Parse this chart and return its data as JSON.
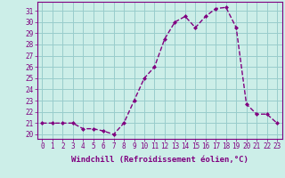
{
  "x": [
    0,
    1,
    2,
    3,
    4,
    5,
    6,
    7,
    8,
    9,
    10,
    11,
    12,
    13,
    14,
    15,
    16,
    17,
    18,
    19,
    20,
    21,
    22,
    23
  ],
  "y": [
    21.0,
    21.0,
    21.0,
    21.0,
    20.5,
    20.5,
    20.3,
    20.0,
    21.0,
    23.0,
    25.0,
    26.0,
    28.5,
    30.0,
    30.5,
    29.5,
    30.5,
    31.2,
    31.3,
    29.5,
    22.7,
    21.8,
    21.8,
    21.0
  ],
  "line_color": "#800080",
  "marker": "D",
  "marker_size": 2.0,
  "bg_color": "#cceee8",
  "grid_color": "#99cccc",
  "xlabel": "Windchill (Refroidissement éolien,°C)",
  "ylabel_ticks": [
    20,
    21,
    22,
    23,
    24,
    25,
    26,
    27,
    28,
    29,
    30,
    31
  ],
  "xlim": [
    -0.5,
    23.5
  ],
  "ylim": [
    19.6,
    31.8
  ],
  "xtick_labels": [
    "0",
    "1",
    "2",
    "3",
    "4",
    "5",
    "6",
    "7",
    "8",
    "9",
    "10",
    "11",
    "12",
    "13",
    "14",
    "15",
    "16",
    "17",
    "18",
    "19",
    "20",
    "21",
    "22",
    "23"
  ],
  "tick_fontsize": 5.5,
  "xlabel_fontsize": 6.5,
  "line_width": 1.0,
  "spine_color": "#800080"
}
